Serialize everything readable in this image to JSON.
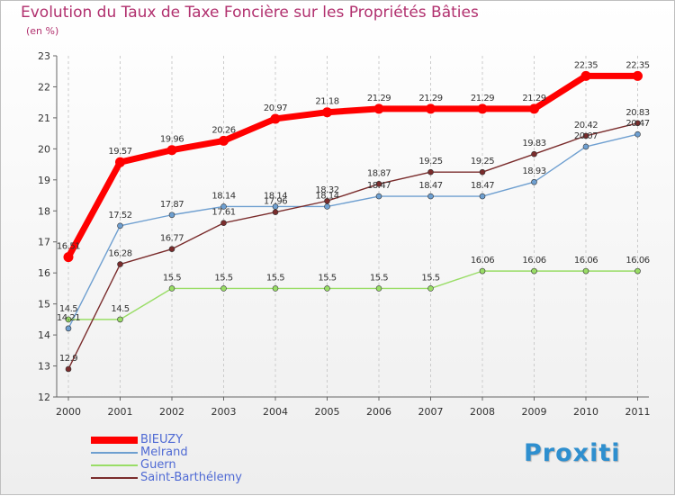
{
  "title": "Evolution du Taux de Taxe Foncière sur les Propriétés Bâties",
  "subtitle": "(en %)",
  "brand": "Proxiti",
  "chart_data": {
    "type": "line",
    "title": "Evolution du Taux de Taxe Foncière sur les Propriétés Bâties",
    "ylabel": "(en %)",
    "xlabel": "",
    "x": [
      "2000",
      "2001",
      "2002",
      "2003",
      "2004",
      "2005",
      "2006",
      "2007",
      "2008",
      "2009",
      "2010",
      "2011"
    ],
    "ylim": [
      12,
      23
    ],
    "yticks": [
      12,
      13,
      14,
      15,
      16,
      17,
      18,
      19,
      20,
      21,
      22,
      23
    ],
    "grid": "vertical dashed",
    "legend": "bottom-left",
    "series": [
      {
        "name": "BIEUZY",
        "color": "#ff0000",
        "values": [
          16.51,
          19.57,
          19.96,
          20.26,
          20.97,
          21.18,
          21.29,
          21.29,
          21.29,
          21.29,
          22.35,
          22.35
        ]
      },
      {
        "name": "Melrand",
        "color": "#6e9fd0",
        "values": [
          14.21,
          17.52,
          17.87,
          18.14,
          18.14,
          18.14,
          18.47,
          18.47,
          18.47,
          18.93,
          20.07,
          20.47
        ]
      },
      {
        "name": "Guern",
        "color": "#99dd66",
        "values": [
          14.5,
          14.5,
          15.5,
          15.5,
          15.5,
          15.5,
          15.5,
          15.5,
          16.06,
          16.06,
          16.06,
          16.06
        ]
      },
      {
        "name": "Saint-Barthélemy",
        "color": "#7a2c2c",
        "values": [
          12.9,
          16.28,
          16.77,
          17.61,
          17.96,
          18.32,
          18.87,
          19.25,
          19.25,
          19.83,
          20.42,
          20.83
        ]
      }
    ]
  }
}
